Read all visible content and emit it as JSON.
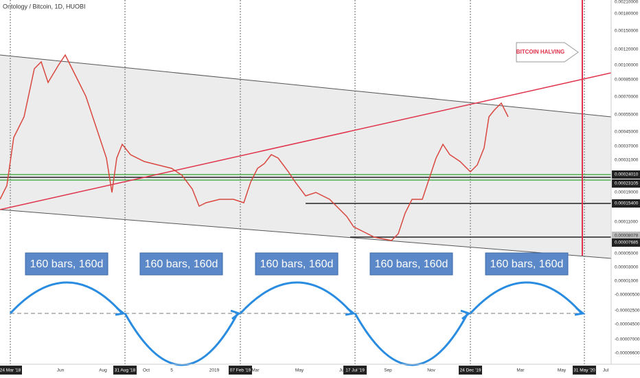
{
  "header": {
    "title": "Ontology / Bitcoin, 1D, HUOBI"
  },
  "annotation": "BITCOIN HALVING",
  "cycle_labels": [
    "160 bars, 160d",
    "160 bars, 160d",
    "160 bars, 160d",
    "160 bars, 160d",
    "160 bars, 160d"
  ],
  "price_axis": [
    "0.00210000",
    "0.00180000",
    "0.00150000",
    "0.00120000",
    "0.00100000",
    "0.00085000",
    "0.00070000",
    "0.00055000",
    "0.00045000",
    "0.00037000",
    "0.00031000",
    "0.00024010",
    "0.00023105",
    "0.00019000",
    "0.00015400",
    "0.00011000",
    "0.00008078",
    "0.00007685",
    "0.00005000",
    "0.00003000",
    "0.00001000",
    "-0.00000500",
    "-0.00002500",
    "-0.00004500",
    "-0.00007000",
    "-0.00009600"
  ],
  "time_axis": [
    "24 Mar '18",
    "Jun",
    "Aug",
    "31 Aug '18",
    "Oct",
    "5",
    "2019",
    "07 Feb '19",
    "Mar",
    "May",
    "Jul",
    "17 Jul '19",
    "Sep",
    "Nov",
    "24 Dec '19",
    "Mar",
    "May",
    "31 May '20",
    "Jul"
  ]
}
